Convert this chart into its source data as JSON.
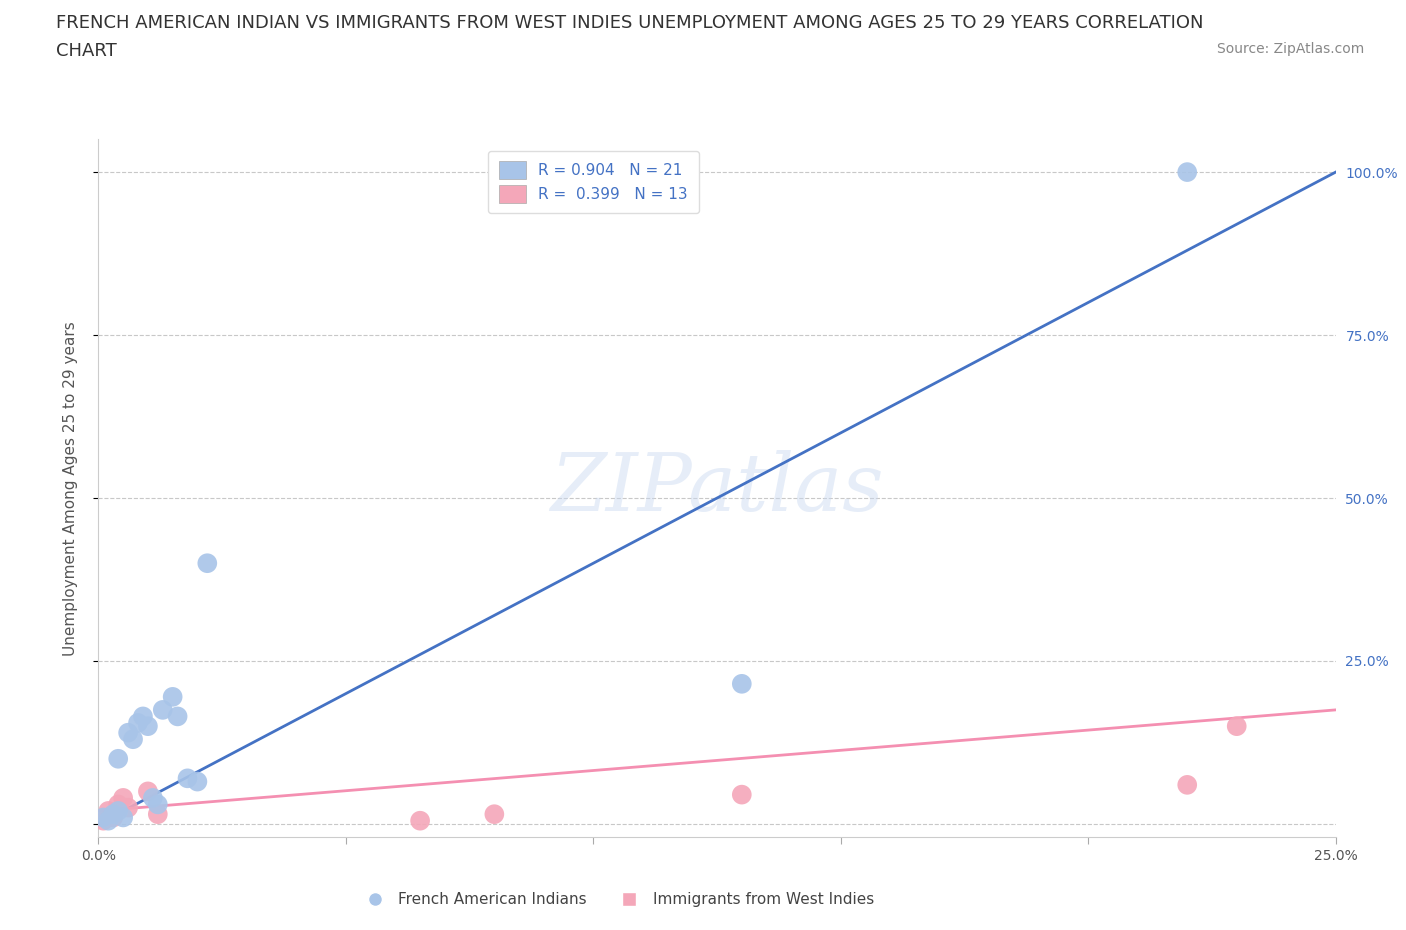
{
  "title_line1": "FRENCH AMERICAN INDIAN VS IMMIGRANTS FROM WEST INDIES UNEMPLOYMENT AMONG AGES 25 TO 29 YEARS CORRELATION",
  "title_line2": "CHART",
  "source": "Source: ZipAtlas.com",
  "ylabel": "Unemployment Among Ages 25 to 29 years",
  "watermark": "ZIPatlas",
  "blue_R": 0.904,
  "blue_N": 21,
  "pink_R": 0.399,
  "pink_N": 13,
  "blue_color": "#a8c4e8",
  "pink_color": "#f4a7b9",
  "blue_line_color": "#4472c4",
  "pink_line_color": "#f48fb1",
  "xlim": [
    0.0,
    0.25
  ],
  "ylim": [
    -0.02,
    1.05
  ],
  "xticks": [
    0.0,
    0.05,
    0.1,
    0.15,
    0.2,
    0.25
  ],
  "yticks": [
    0.0,
    0.25,
    0.5,
    0.75,
    1.0
  ],
  "xticklabels": [
    "0.0%",
    "",
    "",
    "",
    "",
    "25.0%"
  ],
  "right_yticklabels": [
    "",
    "25.0%",
    "50.0%",
    "75.0%",
    "100.0%"
  ],
  "blue_scatter_x": [
    0.001,
    0.002,
    0.003,
    0.004,
    0.004,
    0.005,
    0.006,
    0.007,
    0.008,
    0.009,
    0.01,
    0.011,
    0.012,
    0.013,
    0.015,
    0.016,
    0.018,
    0.02,
    0.022,
    0.13,
    0.22
  ],
  "blue_scatter_y": [
    0.01,
    0.005,
    0.015,
    0.02,
    0.1,
    0.01,
    0.14,
    0.13,
    0.155,
    0.165,
    0.15,
    0.04,
    0.03,
    0.175,
    0.195,
    0.165,
    0.07,
    0.065,
    0.4,
    0.215,
    1.0
  ],
  "pink_scatter_x": [
    0.001,
    0.002,
    0.003,
    0.004,
    0.005,
    0.006,
    0.01,
    0.012,
    0.065,
    0.08,
    0.13,
    0.22,
    0.23
  ],
  "pink_scatter_y": [
    0.005,
    0.02,
    0.01,
    0.03,
    0.04,
    0.025,
    0.05,
    0.015,
    0.005,
    0.015,
    0.045,
    0.06,
    0.15
  ],
  "blue_line_x": [
    0.0,
    0.25
  ],
  "blue_line_y": [
    0.0,
    1.0
  ],
  "pink_line_x": [
    0.0,
    0.25
  ],
  "pink_line_y": [
    0.02,
    0.175
  ],
  "legend_label_blue": "French American Indians",
  "legend_label_pink": "Immigrants from West Indies",
  "title_fontsize": 13,
  "axis_label_fontsize": 11,
  "tick_fontsize": 10,
  "legend_fontsize": 11,
  "source_fontsize": 10,
  "background_color": "#ffffff",
  "grid_color": "#c8c8c8",
  "tick_color": "#4472c4"
}
